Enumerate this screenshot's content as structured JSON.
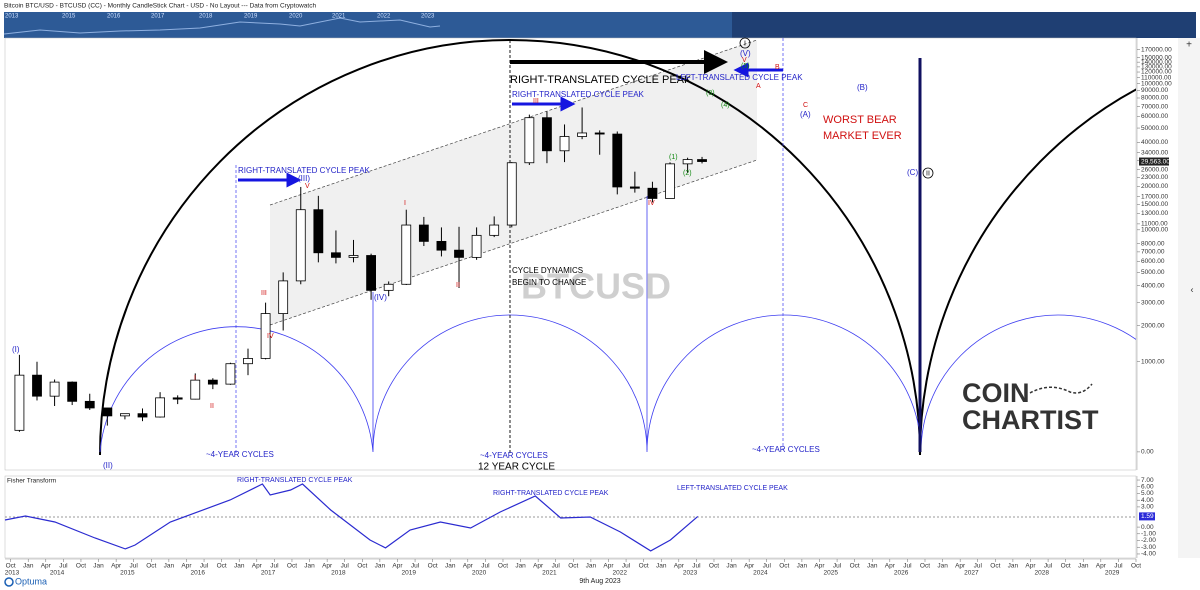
{
  "header": {
    "title": "Bitcoin BTC/USD - BTCUSD (CC) - Monthly CandleStick Chart - USD - No Layout --- Data from Cryptowatch"
  },
  "overview": {
    "years": [
      "2013",
      "2015",
      "2016",
      "2017",
      "2018",
      "2019",
      "2020",
      "2021",
      "2022",
      "2023"
    ]
  },
  "chart_data": [
    {
      "type": "candlestick",
      "log_scale": true,
      "up_color": "#ffffff",
      "down_color": "#000000",
      "x": [
        2013.875,
        2014.125,
        2014.375,
        2014.625,
        2014.875,
        2015.125,
        2015.375,
        2015.625,
        2015.875,
        2016.125,
        2016.375,
        2016.625,
        2016.875,
        2017.125,
        2017.375,
        2017.625,
        2017.875,
        2018.125,
        2018.375,
        2018.625,
        2018.875,
        2019.125,
        2019.375,
        2019.625,
        2019.875,
        2020.125,
        2020.375,
        2020.625,
        2020.875,
        2021.125,
        2021.375,
        2021.625,
        2021.875,
        2022.125,
        2022.375,
        2022.625,
        2022.875,
        2023.125,
        2023.375,
        2023.58
      ],
      "open": [
        130,
        750,
        450,
        640,
        390,
        320,
        245,
        265,
        235,
        430,
        415,
        670,
        610,
        960,
        1070,
        2480,
        4340,
        13800,
        6900,
        6400,
        6600,
        3700,
        4100,
        10800,
        8300,
        7200,
        6400,
        9150,
        10800,
        29000,
        58800,
        35000,
        43800,
        46300,
        45500,
        19800,
        19400,
        16500,
        28500,
        30500
      ],
      "high": [
        1150,
        1000,
        680,
        650,
        480,
        320,
        265,
        315,
        500,
        460,
        780,
        700,
        980,
        1300,
        3000,
        5000,
        19800,
        17200,
        9900,
        8500,
        6800,
        4300,
        13800,
        12300,
        10400,
        10500,
        10400,
        12400,
        29300,
        61700,
        64800,
        52900,
        69000,
        48200,
        47400,
        25200,
        21500,
        29200,
        31400,
        31800
      ],
      "low": [
        120,
        400,
        340,
        350,
        300,
        165,
        215,
        200,
        230,
        360,
        410,
        540,
        600,
        750,
        1050,
        1830,
        4100,
        5900,
        5800,
        5900,
        3150,
        3350,
        4050,
        7700,
        6500,
        3850,
        6150,
        8900,
        10400,
        28000,
        28800,
        29300,
        42000,
        32900,
        17600,
        18100,
        15500,
        16500,
        24800,
        28700
      ],
      "close": [
        750,
        450,
        640,
        390,
        320,
        245,
        265,
        235,
        430,
        415,
        670,
        610,
        960,
        1070,
        2480,
        4340,
        13800,
        6900,
        6400,
        6600,
        3700,
        4100,
        10800,
        8300,
        7200,
        6400,
        9150,
        10800,
        29000,
        58800,
        35000,
        43800,
        46300,
        45500,
        19800,
        19400,
        16500,
        28500,
        30500,
        29563
      ],
      "last_price": {
        "value": 29563,
        "label": "29,563.00"
      },
      "xlim": [
        2013.67,
        2029.75
      ],
      "xticks": [
        {
          "value": 2013.75,
          "label": "Oct"
        },
        {
          "value": 2014,
          "label": "Jan"
        },
        {
          "value": 2014.25,
          "label": "Apr"
        },
        {
          "value": 2014.5,
          "label": "Jul"
        },
        {
          "value": 2014.75,
          "label": "Oct"
        },
        {
          "value": 2015,
          "label": "Jan"
        },
        {
          "value": 2015.25,
          "label": "Apr"
        },
        {
          "value": 2015.5,
          "label": "Jul"
        },
        {
          "value": 2015.75,
          "label": "Oct"
        },
        {
          "value": 2016,
          "label": "Jan"
        },
        {
          "value": 2016.25,
          "label": "Apr"
        },
        {
          "value": 2016.5,
          "label": "Jul"
        },
        {
          "value": 2016.75,
          "label": "Oct"
        },
        {
          "value": 2017,
          "label": "Jan"
        },
        {
          "value": 2017.25,
          "label": "Apr"
        },
        {
          "value": 2017.5,
          "label": "Jul"
        },
        {
          "value": 2017.75,
          "label": "Oct"
        },
        {
          "value": 2018,
          "label": "Jan"
        },
        {
          "value": 2018.25,
          "label": "Apr"
        },
        {
          "value": 2018.5,
          "label": "Jul"
        },
        {
          "value": 2018.75,
          "label": "Oct"
        },
        {
          "value": 2019,
          "label": "Jan"
        },
        {
          "value": 2019.25,
          "label": "Apr"
        },
        {
          "value": 2019.5,
          "label": "Jul"
        },
        {
          "value": 2019.75,
          "label": "Oct"
        },
        {
          "value": 2020,
          "label": "Jan"
        },
        {
          "value": 2020.25,
          "label": "Apr"
        },
        {
          "value": 2020.5,
          "label": "Jul"
        },
        {
          "value": 2020.75,
          "label": "Oct"
        },
        {
          "value": 2021,
          "label": "Jan"
        },
        {
          "value": 2021.25,
          "label": "Apr"
        },
        {
          "value": 2021.5,
          "label": "Jul"
        },
        {
          "value": 2021.75,
          "label": "Oct"
        },
        {
          "value": 2022,
          "label": "Jan"
        },
        {
          "value": 2022.25,
          "label": "Apr"
        },
        {
          "value": 2022.5,
          "label": "Jul"
        },
        {
          "value": 2022.75,
          "label": "Oct"
        },
        {
          "value": 2023,
          "label": "Jan"
        },
        {
          "value": 2023.25,
          "label": "Apr"
        },
        {
          "value": 2023.5,
          "label": "Jul"
        },
        {
          "value": 2023.75,
          "label": "Oct"
        },
        {
          "value": 2024,
          "label": "Jan"
        },
        {
          "value": 2024.25,
          "label": "Apr"
        },
        {
          "value": 2024.5,
          "label": "Jul"
        },
        {
          "value": 2024.75,
          "label": "Oct"
        },
        {
          "value": 2025,
          "label": "Jan"
        },
        {
          "value": 2025.25,
          "label": "Apr"
        },
        {
          "value": 2025.5,
          "label": "Jul"
        },
        {
          "value": 2025.75,
          "label": "Oct"
        },
        {
          "value": 2026,
          "label": "Jan"
        },
        {
          "value": 2026.25,
          "label": "Apr"
        },
        {
          "value": 2026.5,
          "label": "Jul"
        },
        {
          "value": 2026.75,
          "label": "Oct"
        },
        {
          "value": 2027,
          "label": "Jan"
        },
        {
          "value": 2027.25,
          "label": "Apr"
        },
        {
          "value": 2027.5,
          "label": "Jul"
        },
        {
          "value": 2027.75,
          "label": "Oct"
        },
        {
          "value": 2028,
          "label": "Jan"
        },
        {
          "value": 2028.25,
          "label": "Apr"
        },
        {
          "value": 2028.5,
          "label": "Jul"
        },
        {
          "value": 2028.75,
          "label": "Oct"
        },
        {
          "value": 2029,
          "label": "Jan"
        },
        {
          "value": 2029.25,
          "label": "Apr"
        },
        {
          "value": 2029.5,
          "label": "Jul"
        },
        {
          "value": 2029.75,
          "label": "Oct"
        }
      ],
      "year_ticks": [
        2013,
        2014,
        2015,
        2016,
        2017,
        2018,
        2019,
        2020,
        2021,
        2022,
        2023,
        2024,
        2025,
        2026,
        2027,
        2028,
        2029
      ],
      "ylim": [
        -80,
        204000
      ],
      "yticks": [
        {
          "value": 170000,
          "label": "170000.00"
        },
        {
          "value": 150000,
          "label": "150000.00"
        },
        {
          "value": 140000,
          "label": "140000.00"
        },
        {
          "value": 130000,
          "label": "130000.00"
        },
        {
          "value": 120000,
          "label": "120000.00"
        },
        {
          "value": 110000,
          "label": "110000.00"
        },
        {
          "value": 100000,
          "label": "100000.00"
        },
        {
          "value": 90000,
          "label": "90000.00"
        },
        {
          "value": 80000,
          "label": "80000.00"
        },
        {
          "value": 70000,
          "label": "70000.00"
        },
        {
          "value": 60000,
          "label": "60000.00"
        },
        {
          "value": 50000,
          "label": "50000.00"
        },
        {
          "value": 40000,
          "label": "40000.00"
        },
        {
          "value": 34000,
          "label": "34000.00"
        },
        {
          "value": 30000,
          "label": "30000.00"
        },
        {
          "value": 26000,
          "label": "26000.00"
        },
        {
          "value": 23000,
          "label": "23000.00"
        },
        {
          "value": 20000,
          "label": "20000.00"
        },
        {
          "value": 17000,
          "label": "17000.00"
        },
        {
          "value": 15000,
          "label": "15000.00"
        },
        {
          "value": 13000,
          "label": "13000.00"
        },
        {
          "value": 11000,
          "label": "11000.00"
        },
        {
          "value": 10000,
          "label": "10000.00"
        },
        {
          "value": 8000,
          "label": "8000.00"
        },
        {
          "value": 7000,
          "label": "7000.00"
        },
        {
          "value": 6000,
          "label": "6000.00"
        },
        {
          "value": 5000,
          "label": "5000.00"
        },
        {
          "value": 4000,
          "label": "4000.00"
        },
        {
          "value": 3000,
          "label": "3000.00"
        },
        {
          "value": 2000,
          "label": "2000.00"
        },
        {
          "value": 1000,
          "label": "1000.00"
        },
        {
          "value": 0,
          "label": "0.00"
        }
      ],
      "annotations": [
        "RIGHT-TRANSLATED CYCLE PEAK",
        "RIGHT-TRANSLATED CYCLE PEAK",
        "LEFT-TRANSLATED CYCLE PEAK",
        "RIGHT-TRANSLATED CYCLE PEAK",
        "CYCLE DYNAMICS",
        "BEGIN TO CHANGE",
        "BTCUSD",
        "WORST BEAR",
        "MARKET EVER",
        "~4-YEAR CYCLES",
        "~4-YEAR CYCLES",
        "12 YEAR CYCLE",
        "~4-YEAR CYCLES",
        "COIN",
        "CHARTIST"
      ],
      "wave_labels": [
        "(I)",
        "(II)",
        "I",
        "II",
        "III",
        "IV",
        "V",
        "(III)",
        "(IV)",
        "I",
        "II",
        "III",
        "IV",
        "(1)",
        "(2)",
        "(3)",
        "(4)",
        "(5)",
        "(V)",
        "I",
        "A",
        "B",
        "C",
        "(A)",
        "(B)",
        "(C)",
        "II",
        "V"
      ]
    },
    {
      "type": "line",
      "title": "Fisher Transform",
      "color": "#2b2bd0",
      "x": [
        2013.67,
        2013.96,
        2014.38,
        2014.95,
        2015.38,
        2015.52,
        2016.02,
        2016.87,
        2017.33,
        2017.44,
        2017.73,
        2017.9,
        2018.3,
        2018.86,
        2019.08,
        2019.43,
        2019.86,
        2020.29,
        2020.71,
        2021.21,
        2021.57,
        2021.99,
        2022.42,
        2022.85,
        2023.13,
        2023.52
      ],
      "values": [
        1.06,
        1.65,
        0.76,
        -1.62,
        -3.25,
        -2.66,
        0.76,
        4.03,
        6.41,
        4.77,
        5.51,
        6.41,
        2.54,
        -1.92,
        -3.1,
        -0.43,
        0.76,
        -0.13,
        2.25,
        4.62,
        1.35,
        1.5,
        -0.73,
        -3.55,
        -1.92,
        1.59
      ],
      "last_value": {
        "value": 1.59,
        "label": "1.59"
      },
      "reference_line": 1.5,
      "ylim": [
        -4.6,
        7.6
      ],
      "yticks": [
        {
          "value": 7,
          "label": "7.00"
        },
        {
          "value": 6,
          "label": "6.00"
        },
        {
          "value": 5,
          "label": "5.00"
        },
        {
          "value": 4,
          "label": "4.00"
        },
        {
          "value": 3,
          "label": "3.00"
        },
        {
          "value": 0,
          "label": "0.00"
        },
        {
          "value": -1,
          "label": "-1.00"
        },
        {
          "value": -2,
          "label": "-2.00"
        },
        {
          "value": -3,
          "label": "-3.00"
        },
        {
          "value": -4,
          "label": "-4.00"
        }
      ],
      "annotations": [
        "RIGHT-TRANSLATED CYCLE PEAK",
        "RIGHT-TRANSLATED CYCLE PEAK",
        "LEFT-TRANSLATED CYCLE PEAK"
      ]
    }
  ],
  "footer": {
    "date": "9th Aug 2023",
    "brand": "Optuma"
  }
}
